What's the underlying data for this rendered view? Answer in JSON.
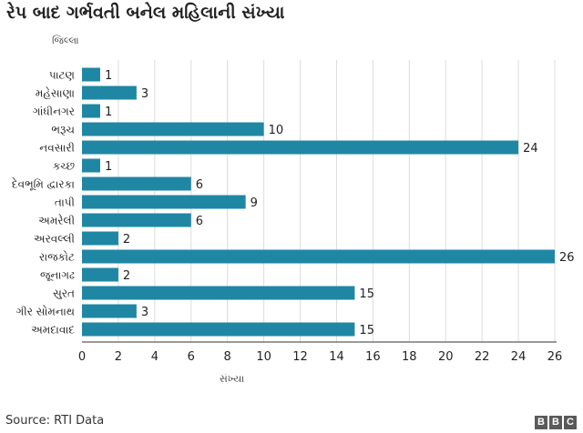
{
  "header": {
    "title": "રેપ બાદ ગર્ભવતી બનેલ મહિલાની સંખ્યા",
    "y_axis_title": "જિલ્લા"
  },
  "footer": {
    "source": "Source: RTI Data",
    "logo_letters": [
      "B",
      "B",
      "C"
    ]
  },
  "chart_data": {
    "type": "bar",
    "orientation": "horizontal",
    "title": "રેપ બાદ ગર્ભવતી બનેલ મહિલાની સંખ્યા",
    "ylabel": "જિલ્લા",
    "xlabel": "સંખ્યા",
    "categories": [
      "પાટણ",
      "મહેસાણા",
      "ગાંધીનગર",
      "ભરૂચ",
      "નવસારી",
      "કચ્છ",
      "દેવભૂમિ દ્વારકા",
      "તાપી",
      "અમરેલી",
      "અરવલ્લી",
      "રાજકોટ",
      "જૂનાગઢ",
      "સુરત",
      "ગીર સોમનાથ",
      "અમદાવાદ"
    ],
    "values": [
      1,
      3,
      1,
      10,
      24,
      1,
      6,
      9,
      6,
      2,
      26,
      2,
      15,
      3,
      15
    ],
    "xlim": [
      0,
      26
    ],
    "xticks": [
      0,
      2,
      4,
      6,
      8,
      10,
      12,
      14,
      16,
      18,
      20,
      22,
      24,
      26
    ],
    "bar_color": "#1f87a4",
    "grid": true,
    "data_labels": true
  }
}
